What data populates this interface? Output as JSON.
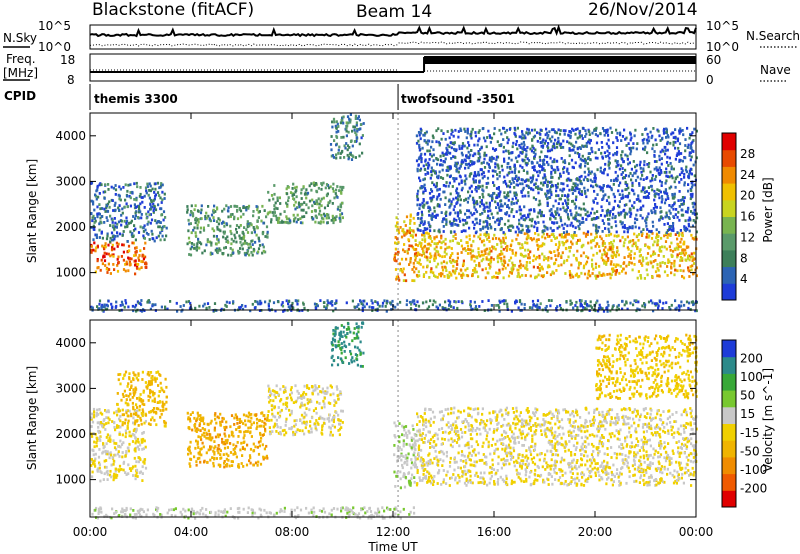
{
  "header": {
    "station": "Blackstone (fitACF)",
    "beam": "Beam 14",
    "date": "26/Nov/2014"
  },
  "sky_panel": {
    "left_label": "N.Sky",
    "right_label": "N.Search",
    "left_ticks": [
      "10^5",
      "10^0"
    ],
    "right_ticks": [
      "10^5",
      "10^0"
    ]
  },
  "freq_panel": {
    "left_label_1": "Freq.",
    "left_label_2": "[MHz]",
    "right_label": "Nave",
    "left_ticks": [
      "18",
      "8"
    ],
    "right_ticks": [
      "60",
      "0"
    ]
  },
  "cpid_panel": {
    "label": "CPID",
    "segments": [
      {
        "name": "themis 3300",
        "start_hour": 0
      },
      {
        "name": "twofsound -3501",
        "start_hour": 12.2
      }
    ]
  },
  "x_axis": {
    "label": "Time UT",
    "ticks": [
      "00:00",
      "04:00",
      "08:00",
      "12:00",
      "16:00",
      "20:00",
      "00:00"
    ],
    "range_hours": [
      0,
      24
    ]
  },
  "chart_data": [
    {
      "type": "heatmap",
      "ylabel": "Slant Range [km]",
      "ylim": [
        180,
        4500
      ],
      "yticks": [
        "1000",
        "2000",
        "3000",
        "4000"
      ],
      "colorbar_label": "Power [dB]",
      "colorbar_ticks": [
        "28",
        "24",
        "20",
        "16",
        "12",
        "8",
        "4"
      ],
      "colorbar_range": [
        0,
        32
      ],
      "colormap": [
        "#1e3cd8",
        "#2c64b4",
        "#3d7f5a",
        "#5a9a6a",
        "#78b450",
        "#c8d420",
        "#f0c000",
        "#f08a00",
        "#e84a00",
        "#e00000"
      ],
      "echo_regions": [
        {
          "t": [
            0,
            2.2
          ],
          "r": [
            1000,
            1700
          ],
          "value": 26
        },
        {
          "t": [
            0,
            3
          ],
          "r": [
            1700,
            3000
          ],
          "value": 6
        },
        {
          "t": [
            3.8,
            7
          ],
          "r": [
            1400,
            2500
          ],
          "value": 10
        },
        {
          "t": [
            7,
            10
          ],
          "r": [
            2100,
            3000
          ],
          "value": 11
        },
        {
          "t": [
            9.5,
            10.8
          ],
          "r": [
            3500,
            4500
          ],
          "value": 8
        },
        {
          "t": [
            12,
            12.9
          ],
          "r": [
            850,
            2300
          ],
          "value": 22
        },
        {
          "t": [
            12.9,
            24
          ],
          "r": [
            900,
            1900
          ],
          "value": 21
        },
        {
          "t": [
            12.9,
            24
          ],
          "r": [
            1900,
            4200
          ],
          "value": 4
        },
        {
          "t": [
            0,
            24
          ],
          "r": [
            180,
            420
          ],
          "value": 5
        }
      ]
    },
    {
      "type": "heatmap",
      "ylabel": "Slant Range [km]",
      "ylim": [
        180,
        4500
      ],
      "yticks": [
        "1000",
        "2000",
        "3000",
        "4000"
      ],
      "colorbar_label": "Velocity [m s^-1]",
      "colorbar_ticks": [
        "200",
        "100",
        "50",
        "15",
        "-15",
        "-50",
        "-100",
        "-200"
      ],
      "colorbar_range": [
        -250,
        250
      ],
      "colormap": [
        "#e00000",
        "#f05a00",
        "#f08c00",
        "#f0b400",
        "#f0d000",
        "#c8c8c8",
        "#78c830",
        "#38a838",
        "#2c8a8a",
        "#1e3cd8"
      ],
      "echo_regions": [
        {
          "t": [
            0,
            2.2
          ],
          "r": [
            1000,
            2600
          ],
          "value": 0
        },
        {
          "t": [
            1,
            3
          ],
          "r": [
            2200,
            3400
          ],
          "value": -60
        },
        {
          "t": [
            3.8,
            7
          ],
          "r": [
            1300,
            2500
          ],
          "value": -80
        },
        {
          "t": [
            7,
            10
          ],
          "r": [
            2000,
            3100
          ],
          "value": 0
        },
        {
          "t": [
            9.5,
            10.8
          ],
          "r": [
            3500,
            4500
          ],
          "value": 160
        },
        {
          "t": [
            12,
            12.9
          ],
          "r": [
            850,
            2300
          ],
          "value": 40
        },
        {
          "t": [
            12.9,
            24
          ],
          "r": [
            900,
            2600
          ],
          "value": 0
        },
        {
          "t": [
            20,
            24
          ],
          "r": [
            2800,
            4200
          ],
          "value": -40
        },
        {
          "t": [
            0,
            12.8
          ],
          "r": [
            180,
            420
          ],
          "value": 30
        }
      ]
    }
  ],
  "colors": {
    "axis": "#000000",
    "background": "#ffffff"
  }
}
